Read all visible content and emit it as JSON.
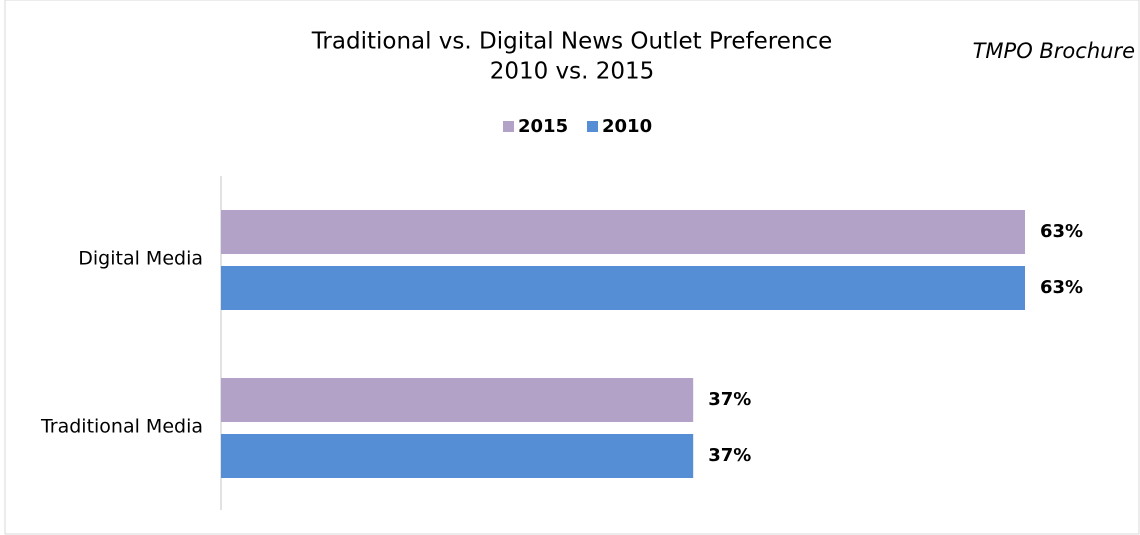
{
  "chart_data": {
    "type": "barh",
    "title": [
      "Traditional vs. Digital News Outlet Preference",
      "2010 vs. 2015"
    ],
    "annotation": "TMPO Brochure",
    "categories": [
      "Digital Media",
      "Traditional Media"
    ],
    "series": [
      {
        "name": "2015",
        "color": "#b3a2c7",
        "values": [
          63,
          37
        ],
        "value_labels": [
          "63%",
          "37%"
        ]
      },
      {
        "name": "2010",
        "color": "#558ed5",
        "values": [
          63,
          37
        ],
        "value_labels": [
          "63%",
          "37%"
        ]
      }
    ]
  }
}
